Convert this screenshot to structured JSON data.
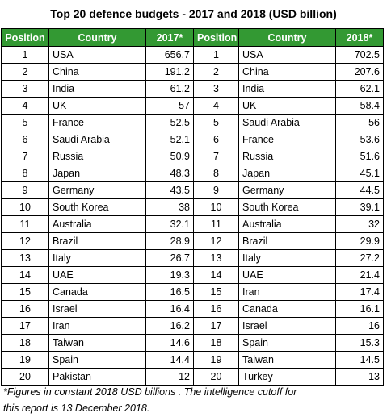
{
  "title": "Top 20 defence budgets - 2017 and 2018 (USD billion)",
  "headers": [
    "Position",
    "Country",
    "2017*",
    "Position",
    "Country",
    "2018*"
  ],
  "rows": [
    [
      "1",
      "USA",
      "656.7",
      "1",
      "USA",
      "702.5"
    ],
    [
      "2",
      "China",
      "191.2",
      "2",
      "China",
      "207.6"
    ],
    [
      "3",
      "India",
      "61.2",
      "3",
      "India",
      "62.1"
    ],
    [
      "4",
      "UK",
      "57",
      "4",
      "UK",
      "58.4"
    ],
    [
      "5",
      "France",
      "52.5",
      "5",
      "Saudi Arabia",
      "56"
    ],
    [
      "6",
      "Saudi Arabia",
      "52.1",
      "6",
      "France",
      "53.6"
    ],
    [
      "7",
      "Russia",
      "50.9",
      "7",
      "Russia",
      "51.6"
    ],
    [
      "8",
      "Japan",
      "48.3",
      "8",
      "Japan",
      "45.1"
    ],
    [
      "9",
      "Germany",
      "43.5",
      "9",
      "Germany",
      "44.5"
    ],
    [
      "10",
      "South Korea",
      "38",
      "10",
      "South Korea",
      "39.1"
    ],
    [
      "11",
      "Australia",
      "32.1",
      "11",
      "Australia",
      "32"
    ],
    [
      "12",
      "Brazil",
      "28.9",
      "12",
      "Brazil",
      "29.9"
    ],
    [
      "13",
      "Italy",
      "26.7",
      "13",
      "Italy",
      "27.2"
    ],
    [
      "14",
      "UAE",
      "19.3",
      "14",
      "UAE",
      "21.4"
    ],
    [
      "15",
      "Canada",
      "16.5",
      "15",
      "Iran",
      "17.4"
    ],
    [
      "16",
      "Israel",
      "16.4",
      "16",
      "Canada",
      "16.1"
    ],
    [
      "17",
      "Iran",
      "16.2",
      "17",
      "Israel",
      "16"
    ],
    [
      "18",
      "Taiwan",
      "14.6",
      "18",
      "Spain",
      "15.3"
    ],
    [
      "19",
      "Spain",
      "14.4",
      "19",
      "Taiwan",
      "14.5"
    ],
    [
      "20",
      "Pakistan",
      "12",
      "20",
      "Turkey",
      "13"
    ]
  ],
  "footnote": {
    "line1": "*Figures in constant 2018 USD billions . The intelligence cutoff for",
    "line2": "this report is 13 December 2018."
  },
  "colors": {
    "header_bg": "#339933",
    "header_text": "#ffffff"
  }
}
